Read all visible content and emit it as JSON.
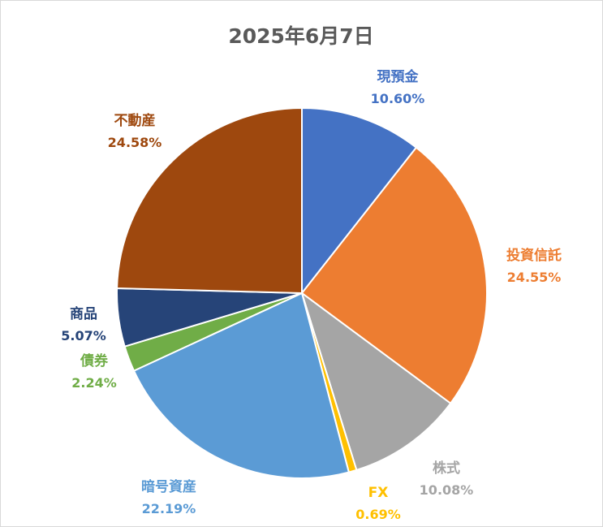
{
  "chart_data": {
    "type": "pie",
    "title": "2025年6月7日",
    "start_angle_deg": 0,
    "direction": "clockwise",
    "slices": [
      {
        "name": "現預金",
        "value": 10.6,
        "label": "10.60%",
        "color": "#4472C4",
        "label_color": "#4472C4"
      },
      {
        "name": "投資信託",
        "value": 24.55,
        "label": "24.55%",
        "color": "#ED7D31",
        "label_color": "#ED7D31"
      },
      {
        "name": "株式",
        "value": 10.08,
        "label": "10.08%",
        "color": "#A5A5A5",
        "label_color": "#A5A5A5"
      },
      {
        "name": "FX",
        "value": 0.69,
        "label": "0.69%",
        "color": "#FFC000",
        "label_color": "#FFC000"
      },
      {
        "name": "暗号資産",
        "value": 22.19,
        "label": "22.19%",
        "color": "#5B9BD5",
        "label_color": "#5B9BD5"
      },
      {
        "name": "債券",
        "value": 2.24,
        "label": "2.24%",
        "color": "#70AD47",
        "label_color": "#70AD47"
      },
      {
        "name": "商品",
        "value": 5.07,
        "label": "5.07%",
        "color": "#264478",
        "label_color": "#264478"
      },
      {
        "name": "不動産",
        "value": 24.58,
        "label": "24.58%",
        "color": "#9E480E",
        "label_color": "#9E480E"
      }
    ]
  }
}
